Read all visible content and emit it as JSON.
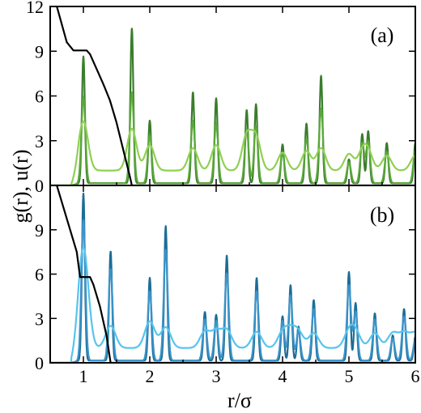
{
  "chart_data": [
    {
      "type": "line",
      "panel_label": "(a)",
      "xlabel": "r/σ",
      "ylabel": "g(r), u(r)",
      "xlim": [
        0.5,
        6
      ],
      "ylim": [
        0,
        12
      ],
      "xticks": [
        1,
        2,
        3,
        4,
        5,
        6
      ],
      "yticks": [
        0,
        3,
        6,
        9,
        12
      ],
      "ytick_labels": [
        "0",
        "3",
        "6",
        "9",
        "12"
      ],
      "colors": {
        "dark": "#3a7d2c",
        "mid": "#5aa83a",
        "light": "#8fd052",
        "potential": "#000000"
      },
      "peaks": [
        {
          "r": 1.0,
          "dark": 8.5,
          "mid": 5.8,
          "light": 3.3
        },
        {
          "r": 1.73,
          "dark": 10.4,
          "mid": 6.1,
          "light": 2.8
        },
        {
          "r": 2.0,
          "dark": 4.2,
          "mid": 3.2,
          "light": 1.7
        },
        {
          "r": 2.65,
          "dark": 6.1,
          "mid": 4.2,
          "light": 1.5
        },
        {
          "r": 3.0,
          "dark": 5.7,
          "mid": 4.0,
          "light": 1.7
        },
        {
          "r": 3.46,
          "dark": 4.9,
          "mid": 3.6,
          "light": 2.3
        },
        {
          "r": 3.6,
          "dark": 5.3,
          "mid": 3.8,
          "light": 2.2
        },
        {
          "r": 4.0,
          "dark": 2.6,
          "mid": 2.0,
          "light": 1.2
        },
        {
          "r": 4.36,
          "dark": 4.0,
          "mid": 3.0,
          "light": 1.3
        },
        {
          "r": 4.58,
          "dark": 7.2,
          "mid": 5.0,
          "light": 1.5
        },
        {
          "r": 5.0,
          "dark": 1.6,
          "mid": 1.4,
          "light": 1.1
        },
        {
          "r": 5.2,
          "dark": 3.3,
          "mid": 2.7,
          "light": 1.1
        },
        {
          "r": 5.29,
          "dark": 3.5,
          "mid": 2.8,
          "light": 1.1
        },
        {
          "r": 5.57,
          "dark": 2.7,
          "mid": 2.1,
          "light": 1.0
        },
        {
          "r": 6.0,
          "dark": 2.7,
          "mid": 2.2,
          "light": 1.0
        }
      ],
      "potential": [
        [
          0.6,
          12.0
        ],
        [
          0.75,
          9.6
        ],
        [
          0.85,
          9.05
        ],
        [
          1.05,
          9.05
        ],
        [
          1.1,
          8.8
        ],
        [
          1.2,
          7.8
        ],
        [
          1.3,
          6.8
        ],
        [
          1.4,
          5.7
        ],
        [
          1.5,
          4.2
        ],
        [
          1.6,
          2.4
        ],
        [
          1.7,
          0.6
        ],
        [
          1.73,
          0.0
        ],
        [
          6.0,
          0.0
        ]
      ]
    },
    {
      "type": "line",
      "panel_label": "(b)",
      "xlabel": "r/σ",
      "ylabel": "g(r), u(r)",
      "xlim": [
        0.5,
        6
      ],
      "ylim": [
        0,
        12
      ],
      "xticks": [
        1,
        2,
        3,
        4,
        5,
        6
      ],
      "xtick_labels": [
        "1",
        "2",
        "3",
        "4",
        "5",
        "6"
      ],
      "yticks": [
        0,
        3,
        6,
        9
      ],
      "ytick_labels": [
        "0",
        "3",
        "6",
        "9"
      ],
      "colors": {
        "dark": "#1c6d96",
        "mid": "#3a93c9",
        "light": "#56c4ee",
        "potential": "#000000"
      },
      "peaks": [
        {
          "r": 1.0,
          "dark": 11.3,
          "mid": 9.5,
          "light": 6.8
        },
        {
          "r": 1.41,
          "dark": 7.4,
          "mid": 6.2,
          "light": 1.5
        },
        {
          "r": 2.0,
          "dark": 5.6,
          "mid": 4.7,
          "light": 1.8
        },
        {
          "r": 2.24,
          "dark": 9.1,
          "mid": 7.5,
          "light": 1.4
        },
        {
          "r": 2.83,
          "dark": 3.3,
          "mid": 2.8,
          "light": 1.1
        },
        {
          "r": 3.0,
          "dark": 3.1,
          "mid": 2.7,
          "light": 1.1
        },
        {
          "r": 3.16,
          "dark": 7.1,
          "mid": 5.9,
          "light": 1.2
        },
        {
          "r": 3.61,
          "dark": 5.6,
          "mid": 4.7,
          "light": 1.1
        },
        {
          "r": 4.0,
          "dark": 3.0,
          "mid": 2.7,
          "light": 1.0
        },
        {
          "r": 4.12,
          "dark": 5.1,
          "mid": 4.4,
          "light": 1.0
        },
        {
          "r": 4.24,
          "dark": 2.3,
          "mid": 2.0,
          "light": 1.0
        },
        {
          "r": 4.47,
          "dark": 4.1,
          "mid": 3.5,
          "light": 1.0
        },
        {
          "r": 5.0,
          "dark": 6.0,
          "mid": 5.1,
          "light": 1.0
        },
        {
          "r": 5.1,
          "dark": 3.9,
          "mid": 3.3,
          "light": 1.0
        },
        {
          "r": 5.39,
          "dark": 3.2,
          "mid": 2.8,
          "light": 1.0
        },
        {
          "r": 5.66,
          "dark": 1.7,
          "mid": 1.5,
          "light": 1.0
        },
        {
          "r": 5.83,
          "dark": 3.5,
          "mid": 3.0,
          "light": 1.0
        },
        {
          "r": 6.0,
          "dark": 1.6,
          "mid": 1.4,
          "light": 1.0
        }
      ],
      "potential": [
        [
          0.6,
          12.0
        ],
        [
          0.9,
          7.5
        ],
        [
          0.95,
          5.8
        ],
        [
          1.1,
          5.8
        ],
        [
          1.15,
          5.3
        ],
        [
          1.25,
          3.8
        ],
        [
          1.35,
          1.8
        ],
        [
          1.41,
          0.0
        ],
        [
          6.0,
          0.0
        ]
      ]
    }
  ]
}
